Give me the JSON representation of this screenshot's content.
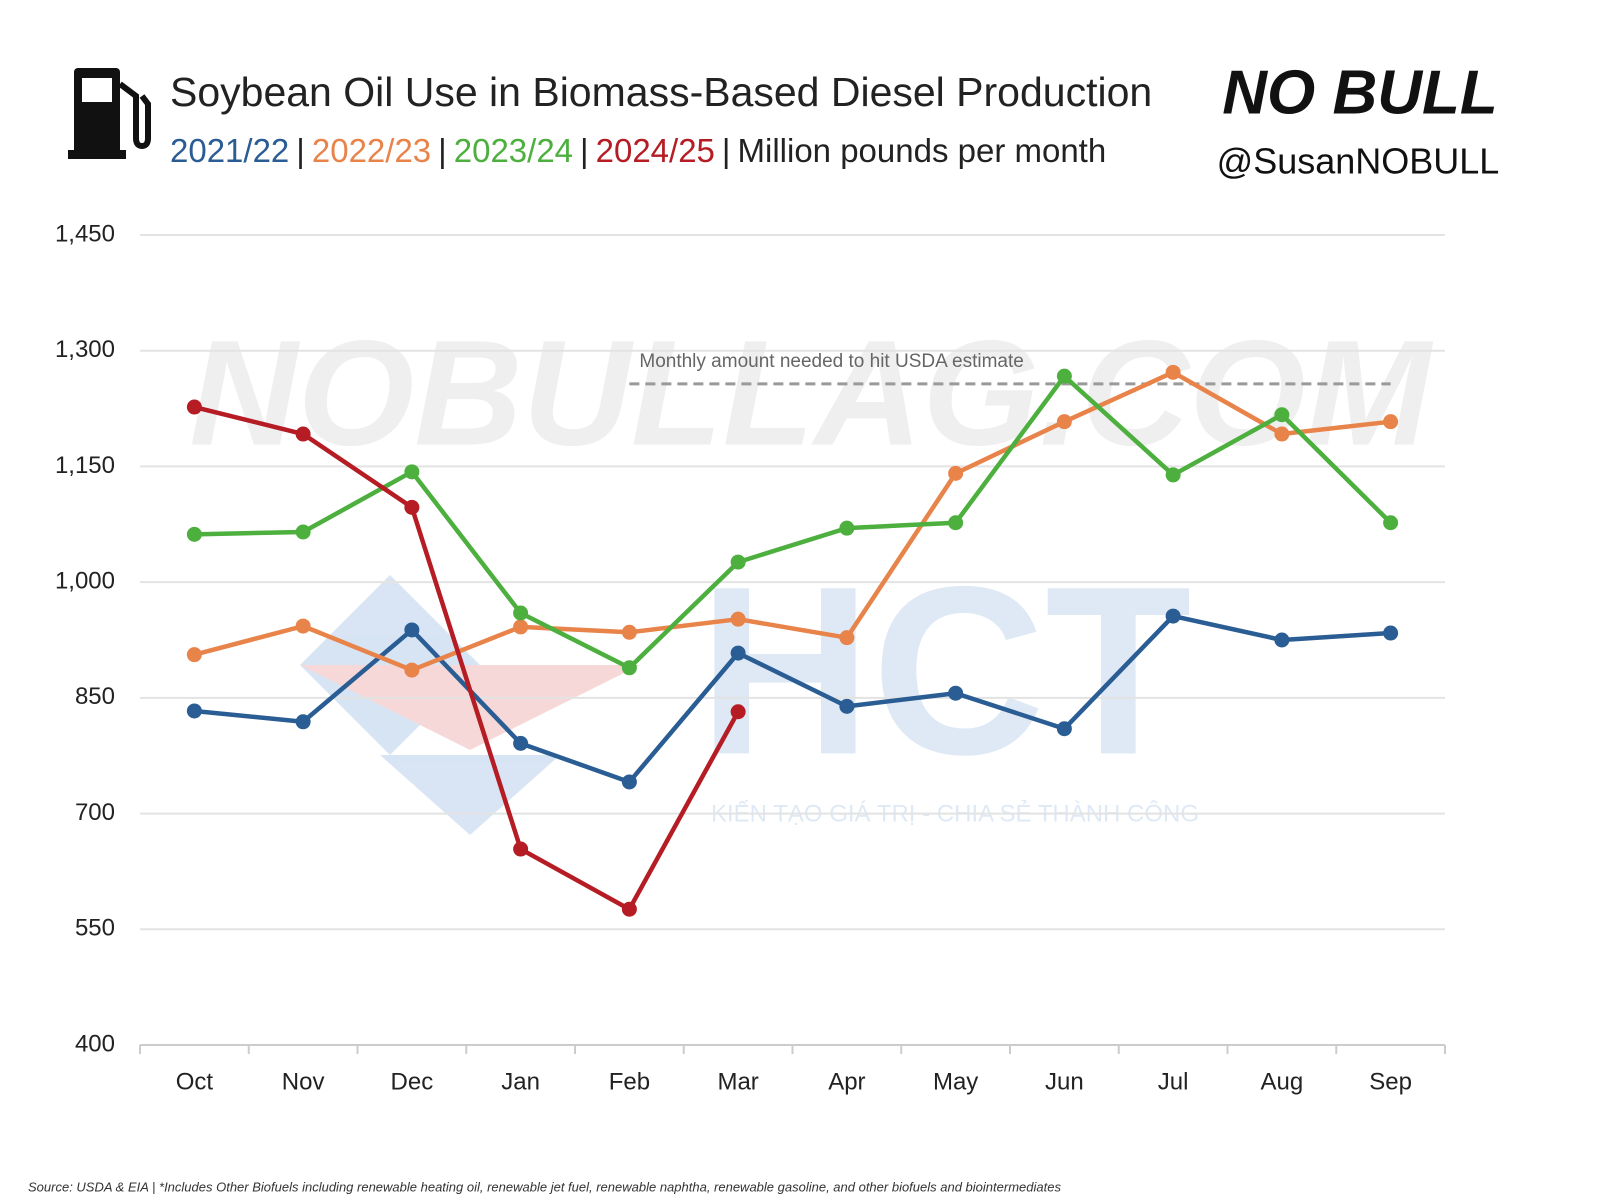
{
  "chart_data": {
    "type": "line",
    "title": "Soybean Oil Use in Biomass-Based Diesel Production",
    "subtitle": "Million pounds per month",
    "legend_separator": "|",
    "logo": "NO BULL",
    "handle": "@SusanNOBULL",
    "source": "Source: USDA & EIA | *Includes Other Biofuels including renewable heating oil, renewable jet fuel, renewable naphtha, renewable gasoline, and other biofuels and biointermediates",
    "watermarks": [
      "NOBULLAG.COM",
      "HCT",
      "KIẾN TẠO GIÁ TRỊ - CHIA SẺ THÀNH CÔNG"
    ],
    "categories": [
      "Oct",
      "Nov",
      "Dec",
      "Jan",
      "Feb",
      "Mar",
      "Apr",
      "May",
      "Jun",
      "Jul",
      "Aug",
      "Sep"
    ],
    "series": [
      {
        "name": "2021/22",
        "color": "#2a5d93",
        "values": [
          833,
          819,
          938,
          791,
          741,
          908,
          839,
          856,
          810,
          956,
          925,
          934
        ]
      },
      {
        "name": "2022/23",
        "color": "#e8834a",
        "values": [
          906,
          943,
          886,
          942,
          935,
          952,
          928,
          1141,
          1208,
          1272,
          1192,
          1208
        ]
      },
      {
        "name": "2023/24",
        "color": "#4caf3e",
        "values": [
          1062,
          1065,
          1143,
          960,
          889,
          1026,
          1070,
          1077,
          1267,
          1139,
          1217,
          1077
        ]
      },
      {
        "name": "2024/25",
        "color": "#b51c24",
        "values": [
          1227,
          1192,
          1097,
          654,
          576,
          832,
          null,
          null,
          null,
          null,
          null,
          null
        ]
      }
    ],
    "reference_line": {
      "label": "Monthly amount needed to hit USDA estimate",
      "value": 1257,
      "color": "#9a9a9a"
    },
    "ylim": [
      400,
      1450
    ],
    "yticks": [
      400,
      550,
      700,
      850,
      {
        "value": 1000,
        "label": "1,000"
      },
      {
        "value": 1150,
        "label": "1,150"
      },
      {
        "value": 1300,
        "label": "1,300"
      },
      {
        "value": 1450,
        "label": "1,450"
      }
    ],
    "grid": true
  }
}
